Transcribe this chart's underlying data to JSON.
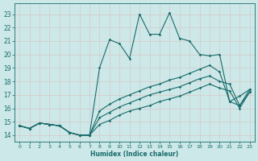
{
  "xlabel": "Humidex (Indice chaleur)",
  "xlim": [
    -0.5,
    23.5
  ],
  "ylim": [
    13.5,
    23.8
  ],
  "xticks": [
    0,
    1,
    2,
    3,
    4,
    5,
    6,
    7,
    8,
    9,
    10,
    11,
    12,
    13,
    14,
    15,
    16,
    17,
    18,
    19,
    20,
    21,
    22,
    23
  ],
  "yticks": [
    14,
    15,
    16,
    17,
    18,
    19,
    20,
    21,
    22,
    23
  ],
  "background_color": "#cce8e8",
  "grid_color": "#b0d4d4",
  "line_color": "#1a6b6b",
  "lines": [
    {
      "x": [
        0,
        1,
        2,
        3,
        4,
        5,
        6,
        7,
        8,
        9,
        10,
        11,
        12,
        13,
        14,
        15,
        16,
        17,
        18,
        19,
        20,
        21,
        22,
        23
      ],
      "y": [
        14.7,
        14.5,
        14.9,
        14.8,
        14.7,
        14.2,
        14.0,
        14.0,
        19.0,
        21.1,
        20.8,
        19.7,
        23.0,
        21.5,
        21.5,
        23.1,
        21.2,
        21.0,
        20.0,
        19.9,
        20.0,
        16.5,
        16.2,
        17.4
      ]
    },
    {
      "x": [
        0,
        1,
        2,
        3,
        4,
        5,
        6,
        7,
        8,
        9,
        10,
        11,
        12,
        13,
        14,
        15,
        16,
        17,
        18,
        19,
        20,
        21,
        22,
        23
      ],
      "y": [
        14.7,
        14.5,
        14.9,
        14.8,
        14.7,
        14.2,
        14.0,
        14.0,
        15.8,
        16.3,
        16.7,
        17.0,
        17.3,
        17.6,
        17.8,
        18.1,
        18.3,
        18.6,
        18.9,
        19.2,
        18.7,
        16.5,
        16.9,
        17.4
      ]
    },
    {
      "x": [
        0,
        1,
        2,
        3,
        4,
        5,
        6,
        7,
        8,
        9,
        10,
        11,
        12,
        13,
        14,
        15,
        16,
        17,
        18,
        19,
        20,
        21,
        22,
        23
      ],
      "y": [
        14.7,
        14.5,
        14.9,
        14.8,
        14.7,
        14.2,
        14.0,
        14.0,
        15.3,
        15.7,
        16.1,
        16.4,
        16.7,
        17.0,
        17.2,
        17.4,
        17.6,
        17.9,
        18.2,
        18.4,
        18.0,
        17.8,
        16.2,
        17.2
      ]
    },
    {
      "x": [
        0,
        1,
        2,
        3,
        4,
        5,
        6,
        7,
        8,
        9,
        10,
        11,
        12,
        13,
        14,
        15,
        16,
        17,
        18,
        19,
        20,
        21,
        22,
        23
      ],
      "y": [
        14.7,
        14.5,
        14.9,
        14.8,
        14.7,
        14.2,
        14.0,
        14.0,
        14.8,
        15.1,
        15.5,
        15.8,
        16.0,
        16.2,
        16.5,
        16.7,
        16.9,
        17.2,
        17.5,
        17.8,
        17.5,
        17.3,
        16.0,
        17.2
      ]
    }
  ]
}
